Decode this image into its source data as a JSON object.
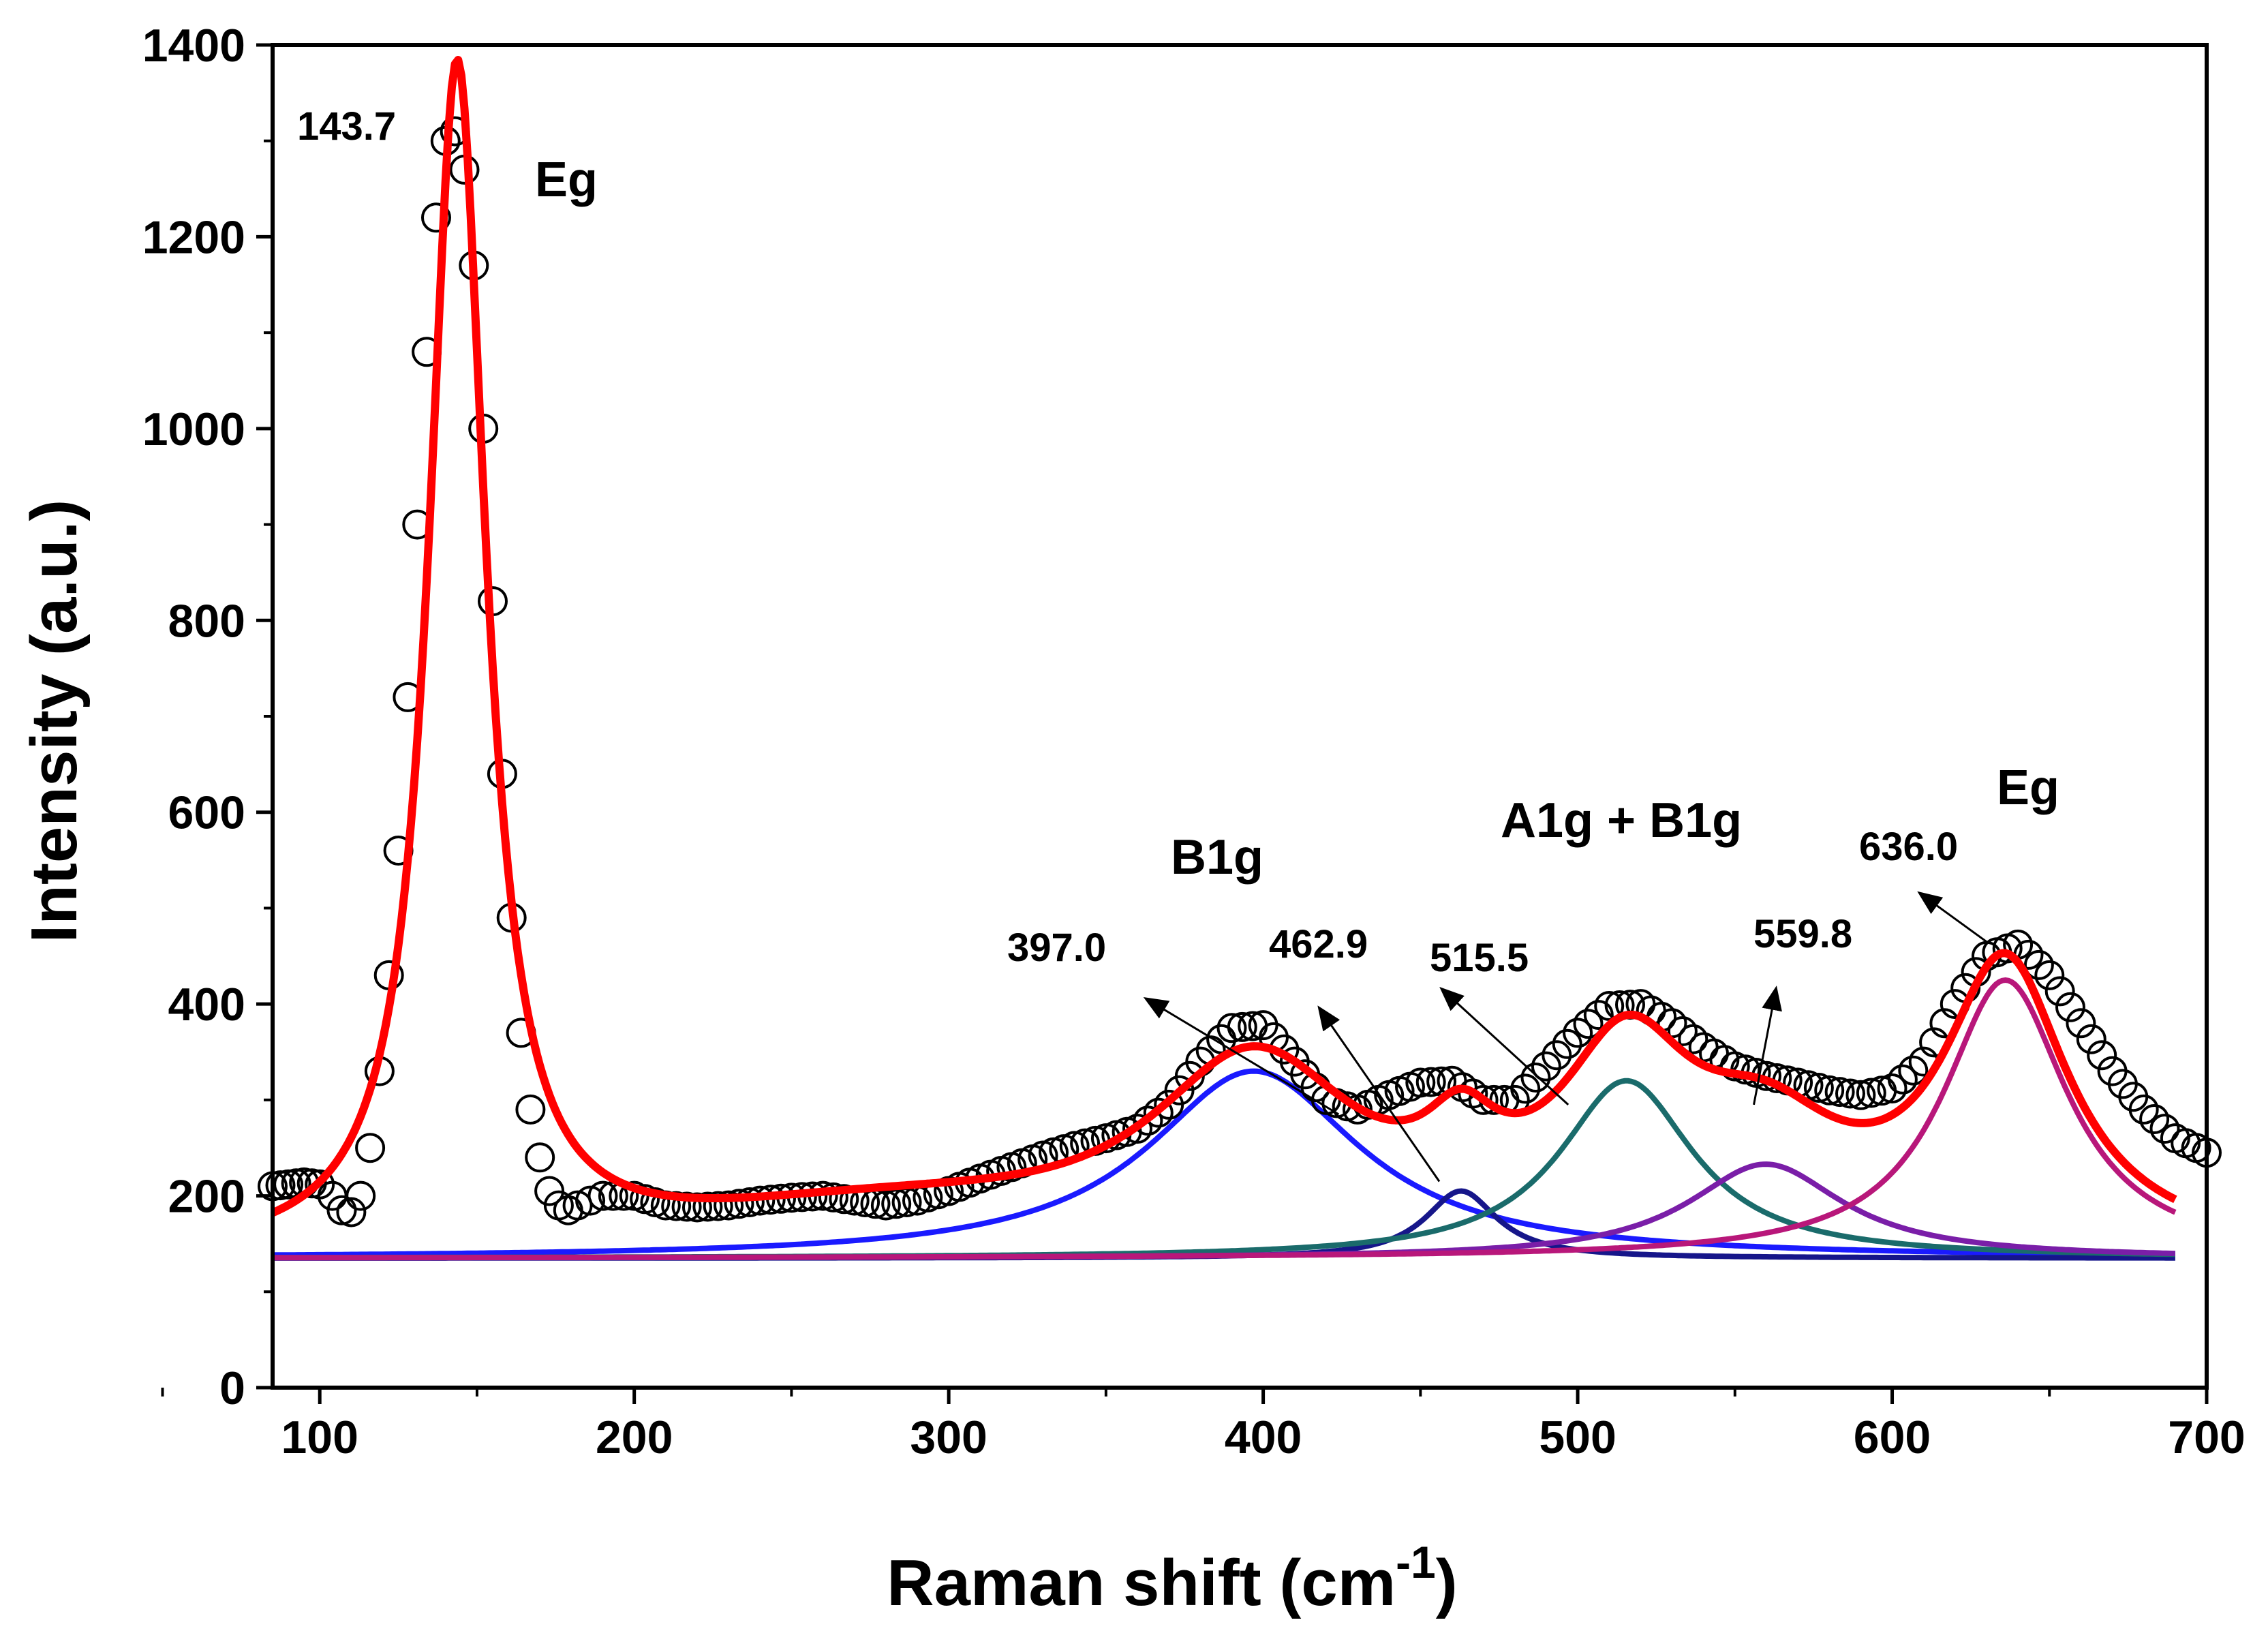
{
  "chart_data": {
    "type": "line",
    "title": "",
    "xlabel": "Raman shift (cm",
    "xlabel_sup": "-1",
    "xlabel_close": ")",
    "ylabel": "Intensity (a.u.)",
    "xlim": [
      85,
      700
    ],
    "ylim": [
      0,
      1400
    ],
    "x_ticks": [
      100,
      200,
      300,
      400,
      500,
      600,
      700
    ],
    "y_ticks": [
      0,
      200,
      400,
      600,
      800,
      1000,
      1200,
      1400
    ],
    "grid": false,
    "baseline": 135,
    "data_points": {
      "x": [
        85,
        90,
        95,
        100,
        104,
        107,
        110,
        113,
        116,
        119,
        122,
        125,
        128,
        131,
        134,
        137,
        140,
        143,
        146,
        149,
        152,
        155,
        158,
        161,
        164,
        167,
        170,
        173,
        176,
        179,
        182,
        186,
        190,
        200,
        210,
        220,
        230,
        240,
        250,
        260,
        270,
        280,
        290,
        300,
        310,
        320,
        330,
        340,
        350,
        360,
        370,
        380,
        390,
        400,
        410,
        420,
        430,
        440,
        450,
        460,
        470,
        480,
        490,
        500,
        510,
        520,
        530,
        540,
        550,
        560,
        570,
        580,
        590,
        600,
        610,
        620,
        630,
        640,
        650,
        660,
        670,
        680,
        690,
        700
      ],
      "y": [
        210,
        212,
        214,
        212,
        200,
        185,
        183,
        200,
        250,
        330,
        430,
        560,
        720,
        900,
        1080,
        1220,
        1300,
        1310,
        1270,
        1170,
        1000,
        820,
        640,
        490,
        370,
        290,
        240,
        205,
        190,
        185,
        190,
        195,
        200,
        200,
        190,
        188,
        190,
        195,
        198,
        200,
        195,
        190,
        195,
        205,
        218,
        230,
        242,
        252,
        260,
        270,
        295,
        340,
        375,
        378,
        340,
        300,
        290,
        305,
        318,
        320,
        300,
        300,
        335,
        370,
        398,
        400,
        380,
        355,
        335,
        325,
        318,
        310,
        305,
        312,
        340,
        400,
        450,
        462,
        430,
        380,
        330,
        290,
        260,
        245
      ]
    },
    "series": [
      {
        "name": "Peak 143.7 (Eg)",
        "color": "#ff0000",
        "center": 143.7,
        "amplitude": 1240,
        "fwhm": 22,
        "show_curve": false
      },
      {
        "name": "Peak 397.0 (B1g)",
        "color": "#1a1aff",
        "center": 397.0,
        "amplitude": 195,
        "fwhm": 82
      },
      {
        "name": "Peak 462.9",
        "color": "#16168a",
        "center": 462.9,
        "amplitude": 70,
        "fwhm": 28
      },
      {
        "name": "Peak 515.5 (A1g + B1g)",
        "color": "#1a6b6b",
        "center": 515.5,
        "amplitude": 185,
        "fwhm": 52
      },
      {
        "name": "Peak 559.8",
        "color": "#7a1ea8",
        "center": 559.8,
        "amplitude": 98,
        "fwhm": 60
      },
      {
        "name": "Peak 636.0 (Eg)",
        "color": "#b8177a",
        "center": 636.0,
        "amplitude": 290,
        "fwhm": 48
      },
      {
        "name": "Cumulative fit",
        "color": "#ff0000",
        "type": "sum"
      }
    ],
    "annotations": [
      {
        "name": "mode-eg-low",
        "text": "Eg"
      },
      {
        "name": "mode-b1g",
        "text": "B1g"
      },
      {
        "name": "mode-a1g-b1g",
        "text": "A1g + B1g"
      },
      {
        "name": "mode-eg-high",
        "text": "Eg"
      },
      {
        "name": "peak-143",
        "text": "143.7"
      },
      {
        "name": "peak-397",
        "text": "397.0"
      },
      {
        "name": "peak-462",
        "text": "462.9"
      },
      {
        "name": "peak-515",
        "text": "515.5"
      },
      {
        "name": "peak-559",
        "text": "559.8"
      },
      {
        "name": "peak-636",
        "text": "636.0"
      }
    ],
    "arrows": [
      {
        "name": "arrow-397",
        "from": [
          424,
          285
        ],
        "to": [
          363,
          405
        ]
      },
      {
        "name": "arrow-462",
        "from": [
          456,
          215
        ],
        "to": [
          418,
          395
        ]
      },
      {
        "name": "arrow-515",
        "from": [
          497,
          295
        ],
        "to": [
          457,
          415
        ]
      },
      {
        "name": "arrow-559",
        "from": [
          556,
          295
        ],
        "to": [
          563,
          415
        ]
      },
      {
        "name": "arrow-636",
        "from": [
          630,
          465
        ],
        "to": [
          609,
          515
        ]
      }
    ]
  }
}
